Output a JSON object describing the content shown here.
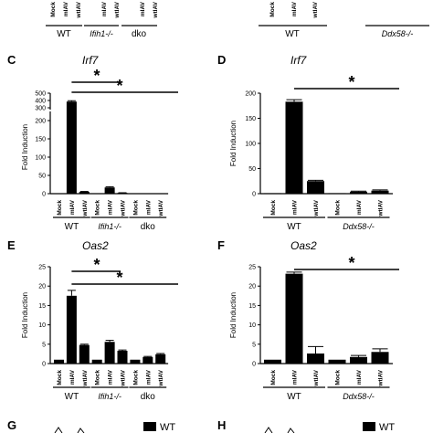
{
  "top_fragment": {
    "left": {
      "cats": [
        "Mock",
        "mIAV",
        "wtIAV",
        "",
        "mIAV",
        "wtIAV",
        "",
        "mIAV",
        "wtIAV"
      ],
      "groups": [
        "WT",
        "Ifih1-/-",
        "dko"
      ]
    },
    "right": {
      "cats": [
        "Mock",
        "mIAV",
        "wtIAV"
      ],
      "groups": [
        "WT",
        "Ddx58-/-"
      ]
    }
  },
  "bottom_fragment": {
    "left_letter": "G",
    "right_letter": "H",
    "legend": "WT"
  },
  "chart_data": [
    {
      "panel": "C",
      "type": "bar",
      "title": "Irf7",
      "ylabel": "Fold Induction",
      "ylim": [
        0,
        220
      ],
      "axis_break": {
        "lower_max": 220,
        "upper_range": [
          300,
          500
        ]
      },
      "yticks": [
        0,
        50,
        100,
        150,
        200
      ],
      "upper_yticks": [
        300,
        400,
        500
      ],
      "categories": [
        "Mock",
        "mIAV",
        "wtIAV",
        "Mock",
        "mIAV",
        "wtIAV",
        "Mock",
        "mIAV",
        "wtIAV"
      ],
      "groups": [
        {
          "label": "WT",
          "italic": false
        },
        {
          "label": "Ifih1-/-",
          "italic": true
        },
        {
          "label": "dko",
          "italic": false
        }
      ],
      "values": [
        1,
        385,
        5,
        1,
        17,
        2,
        1,
        1,
        1
      ],
      "errors": [
        0,
        12,
        1,
        0,
        2,
        0.5,
        0,
        0,
        0
      ],
      "significance": [
        {
          "from": 1,
          "to": 4,
          "label": "*"
        },
        {
          "from": 1,
          "to": 7,
          "label": "*"
        }
      ]
    },
    {
      "panel": "D",
      "type": "bar",
      "title": "Irf7",
      "ylabel": "Fold Induction",
      "ylim": [
        0,
        200
      ],
      "yticks": [
        0,
        50,
        100,
        150,
        200
      ],
      "categories": [
        "Mock",
        "mIAV",
        "wtIAV",
        "Mock",
        "mIAV",
        "wtIAV"
      ],
      "groups": [
        {
          "label": "WT",
          "italic": false
        },
        {
          "label": "Ddx58-/-",
          "italic": true
        }
      ],
      "values": [
        1,
        183,
        25,
        1,
        4,
        6
      ],
      "errors": [
        0,
        4,
        1.5,
        0,
        1,
        1.5
      ],
      "significance": [
        {
          "from": 1,
          "to": 4,
          "label": "*"
        }
      ]
    },
    {
      "panel": "E",
      "type": "bar",
      "title": "Oas2",
      "ylabel": "Fold Induction",
      "ylim": [
        0,
        25
      ],
      "yticks": [
        0,
        5,
        10,
        15,
        20,
        25
      ],
      "categories": [
        "Mock",
        "mIAV",
        "wtIAV",
        "Mock",
        "mIAV",
        "wtIAV",
        "Mock",
        "mIAV",
        "wtIAV"
      ],
      "groups": [
        {
          "label": "WT",
          "italic": false
        },
        {
          "label": "Ifih1-/-",
          "italic": true
        },
        {
          "label": "dko",
          "italic": false
        }
      ],
      "values": [
        1,
        17.5,
        4.8,
        1,
        5.6,
        3.3,
        1,
        1.7,
        2.4
      ],
      "errors": [
        0,
        1.4,
        0.2,
        0,
        0.4,
        0.2,
        0,
        0.15,
        0.2
      ],
      "significance": [
        {
          "from": 1,
          "to": 4,
          "label": "*"
        },
        {
          "from": 1,
          "to": 7,
          "label": "*"
        }
      ]
    },
    {
      "panel": "F",
      "type": "bar",
      "title": "Oas2",
      "ylabel": "Fold Induction",
      "ylim": [
        0,
        25
      ],
      "yticks": [
        0,
        5,
        10,
        15,
        20,
        25
      ],
      "categories": [
        "Mock",
        "mIAV",
        "wtIAV",
        "Mock",
        "mIAV",
        "wtIAV"
      ],
      "groups": [
        {
          "label": "WT",
          "italic": false
        },
        {
          "label": "Ddx58-/-",
          "italic": true
        }
      ],
      "values": [
        1,
        23.2,
        2.6,
        1,
        1.7,
        3
      ],
      "errors": [
        0,
        0.4,
        1.8,
        0,
        0.4,
        0.8
      ],
      "significance": [
        {
          "from": 1,
          "to": 4,
          "label": "*"
        }
      ]
    }
  ]
}
